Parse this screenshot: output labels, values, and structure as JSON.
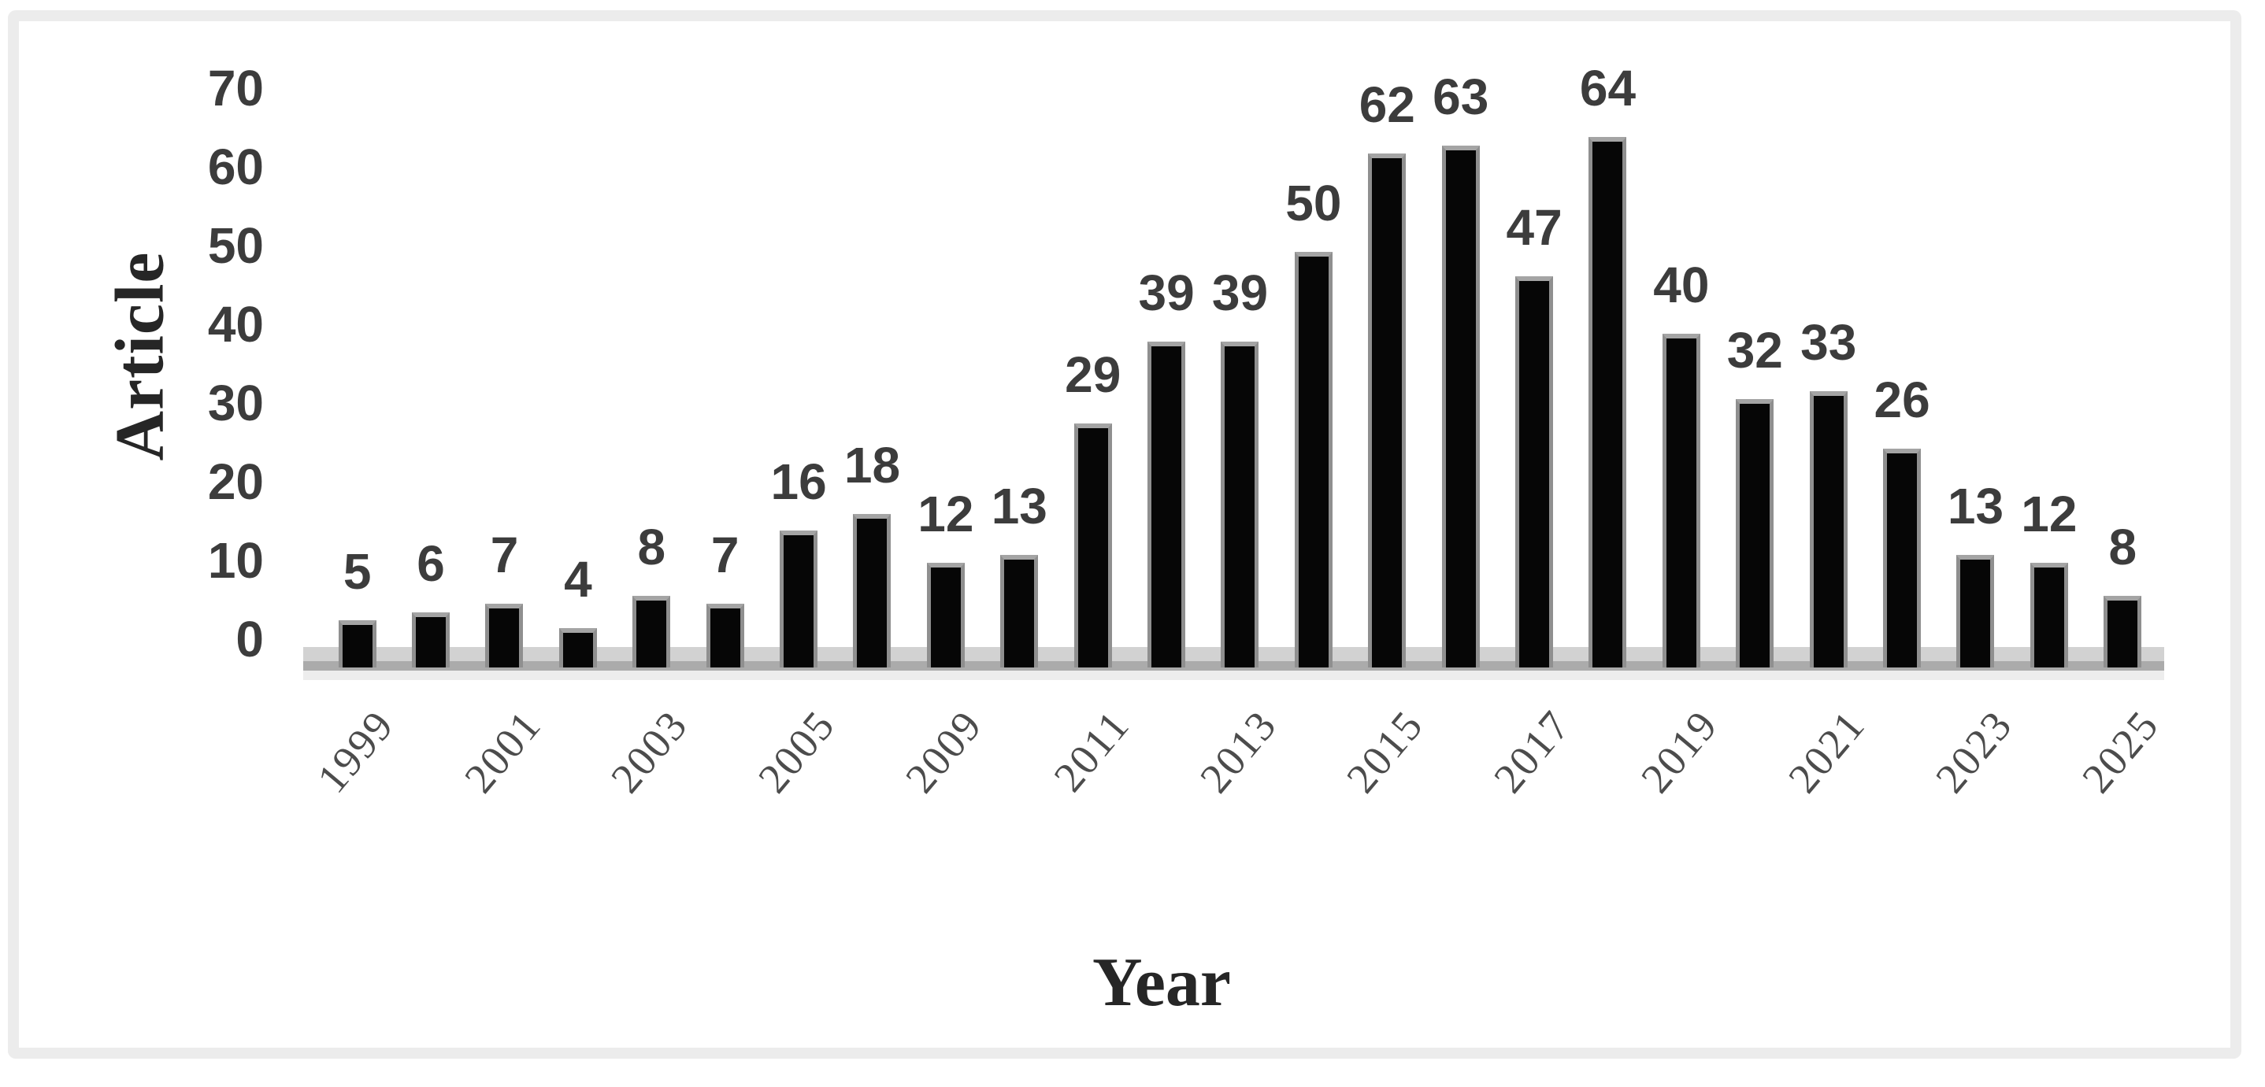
{
  "chart_data": {
    "type": "bar",
    "title": "",
    "ylabel": "Article",
    "xlabel": "Year",
    "values": [
      5,
      6,
      7,
      4,
      8,
      7,
      16,
      18,
      12,
      13,
      29,
      39,
      39,
      50,
      62,
      63,
      47,
      64,
      40,
      32,
      33,
      26,
      13,
      12,
      8
    ],
    "bar_value_labels": [
      "5",
      "6",
      "7",
      "4",
      "8",
      "7",
      "16",
      "18",
      "12",
      "13",
      "29",
      "39",
      "39",
      "50",
      "62",
      "63",
      "47",
      "64",
      "40",
      "32",
      "33",
      "26",
      "13",
      "12",
      "8"
    ],
    "x_tick_labels": [
      "1999",
      "2001",
      "2003",
      "2005",
      "2009",
      "2011",
      "2013",
      "2015",
      "2017",
      "2019",
      "2021",
      "2023",
      "2025"
    ],
    "x_tick_bar_indices": [
      0,
      2,
      4,
      6,
      8,
      10,
      12,
      14,
      16,
      18,
      20,
      22,
      24
    ],
    "y_ticks": [
      0,
      10,
      20,
      30,
      40,
      50,
      60,
      70
    ],
    "ylim": [
      0,
      70
    ],
    "grid": false,
    "legend": "none",
    "data_labels_shown": true,
    "x_tick_rotation_deg": -50,
    "colors": {
      "bar_fill": "#060606",
      "bar_edge": "#8f8f8f",
      "value_label": "#3c3c3c",
      "y_tick_label": "#3c3c3c",
      "x_tick_label": "#4c4c4c",
      "axis_title": "#262626",
      "axis_line_top": "#d2d2d2",
      "axis_line_main": "#ababab",
      "axis_line_shadow": "#ededed",
      "frame_border": "#ececec",
      "background": "#ffffff"
    }
  }
}
